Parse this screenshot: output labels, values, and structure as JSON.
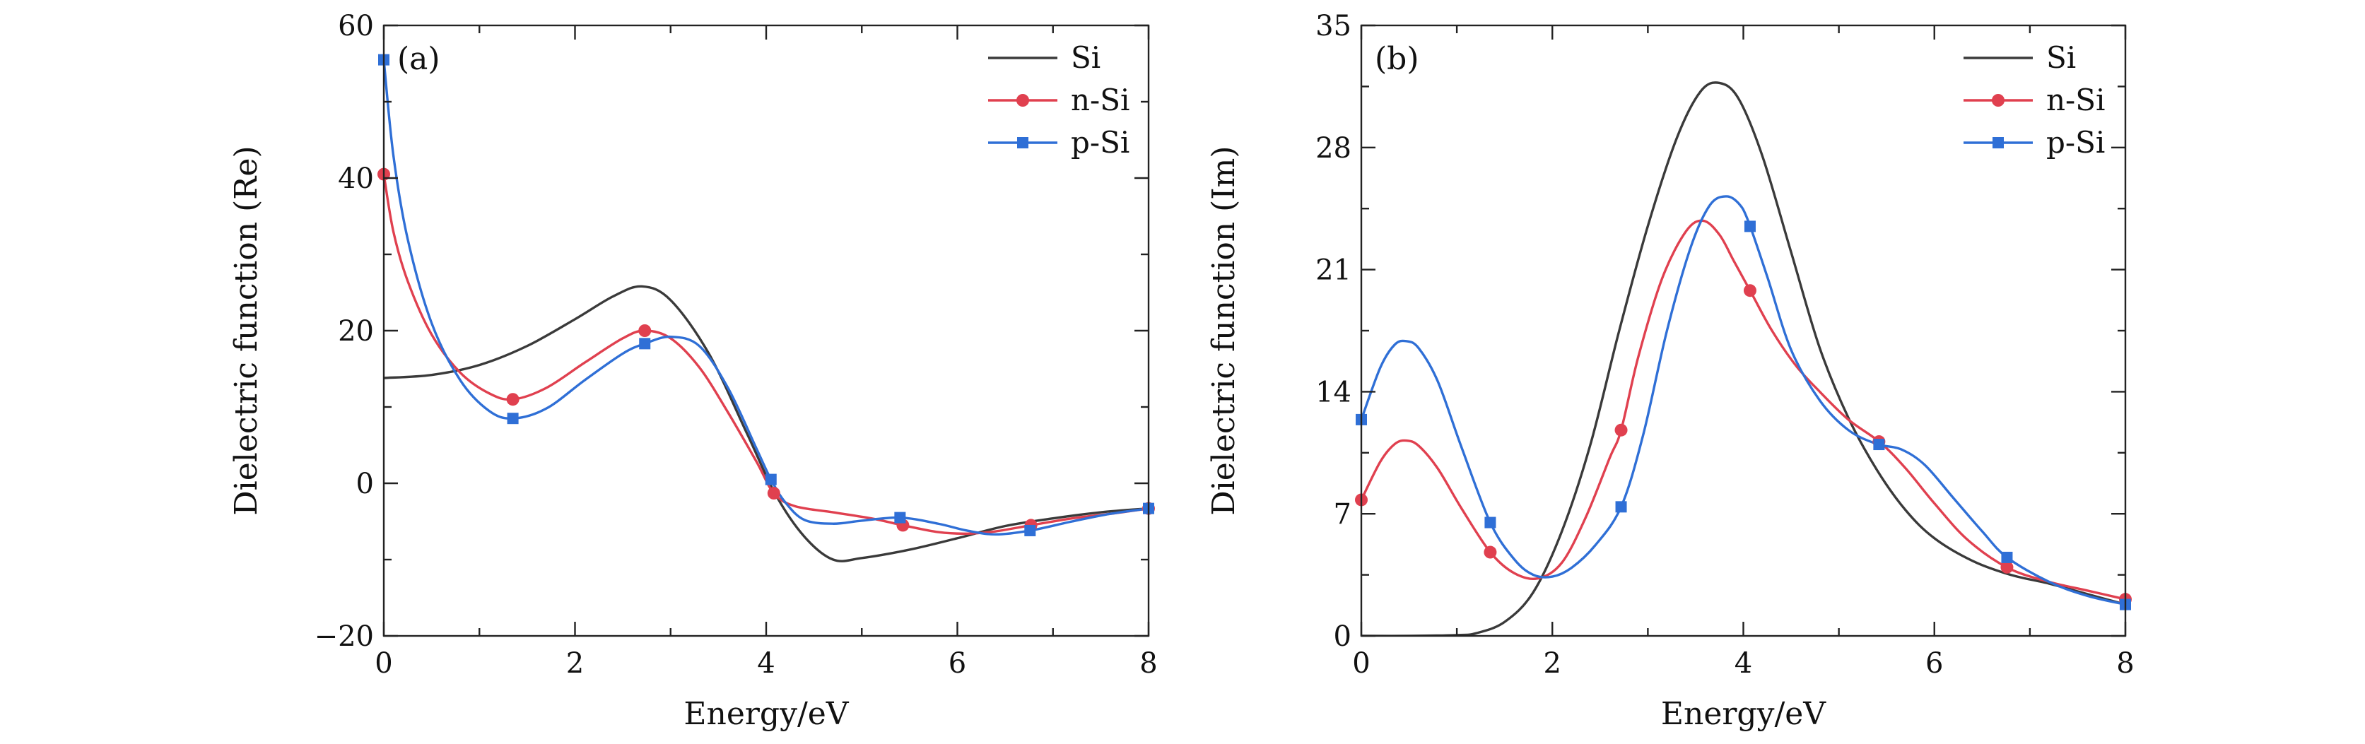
{
  "chart_data": [
    {
      "type": "line",
      "panel_label": "(a)",
      "xlabel": "Energy/eV",
      "ylabel": "Dielectric function (Re)",
      "xlim": [
        0,
        8
      ],
      "ylim": [
        -20,
        60
      ],
      "xticks": [
        0,
        2,
        4,
        6,
        8
      ],
      "yticks": [
        -20,
        0,
        20,
        40,
        60
      ],
      "xtick_labels": [
        "0",
        "2",
        "4",
        "6",
        "8"
      ],
      "ytick_labels": [
        "−20",
        "0",
        "20",
        "40",
        "60"
      ],
      "legend_position": "top-right",
      "series": [
        {
          "name": "Si",
          "color": "#3a3a3a",
          "marker": "none",
          "x": [
            0,
            0.5,
            1.0,
            1.5,
            2.0,
            2.4,
            2.7,
            3.0,
            3.4,
            3.8,
            4.1,
            4.4,
            4.7,
            5.0,
            5.5,
            6.0,
            6.5,
            7.0,
            7.5,
            8.0
          ],
          "y": [
            13.8,
            14.2,
            15.5,
            18,
            21.5,
            24.5,
            25.8,
            24,
            17,
            6.5,
            -1.5,
            -7,
            -10,
            -9.8,
            -8.7,
            -7.2,
            -5.6,
            -4.6,
            -3.8,
            -3.3
          ]
        },
        {
          "name": "n-Si",
          "color": "#e0404f",
          "marker": "circle",
          "x": [
            0,
            0.1,
            0.25,
            0.5,
            0.8,
            1.1,
            1.35,
            1.7,
            2.1,
            2.5,
            2.73,
            3.0,
            3.3,
            3.6,
            3.9,
            4.08,
            4.3,
            4.7,
            5.1,
            5.43,
            5.8,
            6.1,
            6.4,
            6.77,
            7.2,
            7.6,
            8.0
          ],
          "y": [
            40.5,
            33,
            26.5,
            19.5,
            14.5,
            11.8,
            11,
            12.5,
            15.8,
            19,
            20,
            19,
            15.2,
            9.3,
            2.8,
            -1.3,
            -3,
            -3.8,
            -4.6,
            -5.5,
            -6.4,
            -6.6,
            -6.3,
            -5.5,
            -4.6,
            -4,
            -3.3
          ],
          "markers_x": [
            0,
            1.35,
            2.73,
            4.08,
            5.43,
            6.77,
            8.0
          ]
        },
        {
          "name": "p-Si",
          "color": "#2f6fd6",
          "marker": "square",
          "x": [
            0,
            0.1,
            0.25,
            0.5,
            0.8,
            1.1,
            1.35,
            1.7,
            2.1,
            2.5,
            2.73,
            3.0,
            3.3,
            3.6,
            3.9,
            4.05,
            4.2,
            4.4,
            4.7,
            5.0,
            5.4,
            5.8,
            6.1,
            6.4,
            6.76,
            7.2,
            7.6,
            8.0
          ],
          "y": [
            55.5,
            43,
            32,
            21,
            13.5,
            9.5,
            8.5,
            9.8,
            13.5,
            17,
            18.3,
            19.2,
            18,
            12.5,
            4.5,
            0.5,
            -2.5,
            -4.8,
            -5.3,
            -4.9,
            -4.5,
            -5.3,
            -6.2,
            -6.7,
            -6.2,
            -5,
            -4,
            -3.3
          ],
          "markers_x": [
            0,
            1.35,
            2.73,
            4.05,
            5.4,
            6.76,
            8.0
          ]
        }
      ]
    },
    {
      "type": "line",
      "panel_label": "(b)",
      "xlabel": "Energy/eV",
      "ylabel": "Dielectric function (Im)",
      "xlim": [
        0,
        8
      ],
      "ylim": [
        0,
        35
      ],
      "xticks": [
        0,
        2,
        4,
        6,
        8
      ],
      "yticks": [
        0,
        7,
        14,
        21,
        28,
        35
      ],
      "xtick_labels": [
        "0",
        "2",
        "4",
        "6",
        "8"
      ],
      "ytick_labels": [
        "0",
        "7",
        "14",
        "21",
        "28",
        "35"
      ],
      "legend_position": "top-right",
      "series": [
        {
          "name": "Si",
          "color": "#3a3a3a",
          "marker": "none",
          "x": [
            0,
            0.5,
            1.0,
            1.2,
            1.5,
            1.8,
            2.1,
            2.4,
            2.7,
            3.0,
            3.3,
            3.55,
            3.75,
            3.95,
            4.2,
            4.5,
            4.8,
            5.1,
            5.4,
            5.7,
            6.0,
            6.4,
            6.8,
            7.2,
            7.6,
            8.0
          ],
          "y": [
            0,
            0,
            0.05,
            0.15,
            0.8,
            2.5,
            6,
            11,
            17.5,
            23.5,
            28.5,
            31.2,
            31.7,
            30.8,
            27.5,
            22,
            16.5,
            12.5,
            9.5,
            7.2,
            5.6,
            4.3,
            3.5,
            3,
            2.4,
            1.8
          ],
          "markers_x": []
        },
        {
          "name": "n-Si",
          "color": "#e0404f",
          "marker": "circle",
          "x": [
            0,
            0.2,
            0.35,
            0.47,
            0.6,
            0.8,
            1.05,
            1.35,
            1.6,
            1.85,
            2.1,
            2.35,
            2.6,
            2.72,
            2.9,
            3.15,
            3.4,
            3.58,
            3.75,
            3.9,
            4.08,
            4.3,
            4.55,
            4.8,
            5.1,
            5.43,
            5.7,
            6.0,
            6.35,
            6.77,
            7.2,
            7.6,
            8.0
          ],
          "y": [
            7.8,
            10,
            11,
            11.2,
            10.9,
            9.6,
            7.3,
            4.8,
            3.6,
            3.3,
            4.2,
            6.8,
            10.2,
            11.8,
            16,
            20.5,
            23.2,
            23.8,
            23,
            21.5,
            19.7,
            17.5,
            15.5,
            14,
            12.4,
            11.1,
            9.6,
            7.6,
            5.5,
            3.9,
            3.1,
            2.6,
            2.1
          ]
        },
        {
          "name": "p-Si",
          "color": "#2f6fd6",
          "marker": "square",
          "x": [
            0,
            0.2,
            0.35,
            0.47,
            0.6,
            0.8,
            1.05,
            1.35,
            1.6,
            1.8,
            2.0,
            2.2,
            2.45,
            2.72,
            2.95,
            3.2,
            3.45,
            3.65,
            3.82,
            3.95,
            4.05,
            4.25,
            4.5,
            4.8,
            5.1,
            5.4,
            5.65,
            5.9,
            6.2,
            6.5,
            6.76,
            7.2,
            7.6,
            8.0
          ],
          "y": [
            12.4,
            15.4,
            16.7,
            16.9,
            16.5,
            14.6,
            10.8,
            6.5,
            4.4,
            3.5,
            3.4,
            3.9,
            5.2,
            7.4,
            11.5,
            17.5,
            22.3,
            24.7,
            25.2,
            24.8,
            23.8,
            20.6,
            16.4,
            13.5,
            11.8,
            11,
            10.7,
            9.8,
            7.9,
            6,
            4.5,
            3.1,
            2.3,
            1.8
          ]
        }
      ]
    }
  ]
}
